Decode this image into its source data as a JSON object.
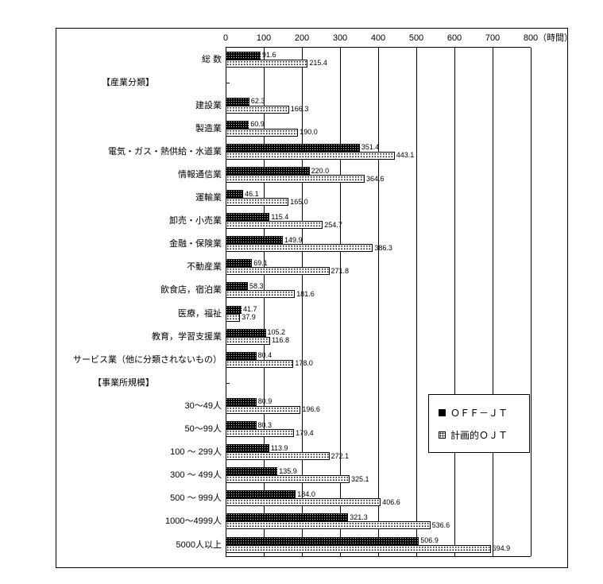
{
  "chart_data": {
    "type": "bar",
    "orientation": "horizontal",
    "title": "",
    "unit_label": "（時間）",
    "xlim": [
      0,
      800
    ],
    "x_ticks": [
      0,
      100,
      200,
      300,
      400,
      500,
      600,
      700,
      800
    ],
    "grid": true,
    "legend_position": "inside-right",
    "series": [
      {
        "name": "ＯＦＦ－ＪＴ"
      },
      {
        "name": "計画的ＯＪＴ"
      }
    ],
    "rows": [
      {
        "type": "data",
        "label": "総 数",
        "off_jt": 91.6,
        "ojt": 215.4
      },
      {
        "type": "header",
        "label": "【産業分類】"
      },
      {
        "type": "data",
        "label": "建設業",
        "off_jt": 62.3,
        "ojt": 166.3
      },
      {
        "type": "data",
        "label": "製造業",
        "off_jt": 60.9,
        "ojt": 190.0
      },
      {
        "type": "data",
        "label": "電気・ガス・熱供給・水道業",
        "off_jt": 351.4,
        "ojt": 443.1
      },
      {
        "type": "data",
        "label": "情報通信業",
        "off_jt": 220.0,
        "ojt": 364.6
      },
      {
        "type": "data",
        "label": "運輸業",
        "off_jt": 46.1,
        "ojt": 165.0
      },
      {
        "type": "data",
        "label": "卸売・小売業",
        "off_jt": 115.4,
        "ojt": 254.7
      },
      {
        "type": "data",
        "label": "金融・保険業",
        "off_jt": 149.9,
        "ojt": 386.3
      },
      {
        "type": "data",
        "label": "不動産業",
        "off_jt": 69.1,
        "ojt": 271.8
      },
      {
        "type": "data",
        "label": "飲食店，宿泊業",
        "off_jt": 58.3,
        "ojt": 181.6
      },
      {
        "type": "data",
        "label": "医療，福祉",
        "off_jt": 41.7,
        "ojt": 37.9
      },
      {
        "type": "data",
        "label": "教育，学習支援業",
        "off_jt": 105.2,
        "ojt": 116.8
      },
      {
        "type": "data",
        "label": "サービス業（他に分類されないもの）",
        "off_jt": 80.4,
        "ojt": 178.0
      },
      {
        "type": "header",
        "label": "【事業所規模】"
      },
      {
        "type": "data",
        "label": "30～49人",
        "off_jt": 80.9,
        "ojt": 196.6
      },
      {
        "type": "data",
        "label": "50～99人",
        "off_jt": 80.3,
        "ojt": 179.4
      },
      {
        "type": "data",
        "label": "100 ～ 299人",
        "off_jt": 113.9,
        "ojt": 272.1
      },
      {
        "type": "data",
        "label": "300 ～ 499人",
        "off_jt": 135.9,
        "ojt": 325.1
      },
      {
        "type": "data",
        "label": "500 ～ 999人",
        "off_jt": 184.0,
        "ojt": 406.6
      },
      {
        "type": "data",
        "label": "1000～4999人",
        "off_jt": 321.3,
        "ojt": 536.6
      },
      {
        "type": "data",
        "label": "5000人以上",
        "off_jt": 506.9,
        "ojt": 694.9
      }
    ]
  }
}
